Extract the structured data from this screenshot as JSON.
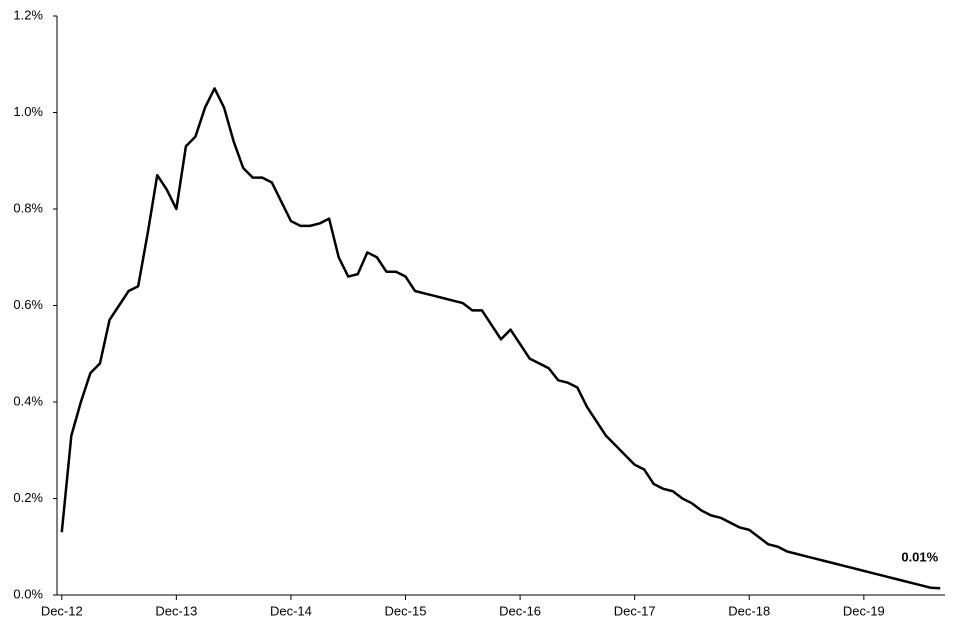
{
  "chart_data": {
    "type": "line",
    "categories": [
      "Dec-12",
      null,
      null,
      null,
      null,
      null,
      null,
      null,
      null,
      null,
      null,
      null,
      "Dec-13",
      null,
      null,
      null,
      null,
      null,
      null,
      null,
      null,
      null,
      null,
      null,
      "Dec-14",
      null,
      null,
      null,
      null,
      null,
      null,
      null,
      null,
      null,
      null,
      null,
      "Dec-15",
      null,
      null,
      null,
      null,
      null,
      null,
      null,
      null,
      null,
      null,
      null,
      "Dec-16",
      null,
      null,
      null,
      null,
      null,
      null,
      null,
      null,
      null,
      null,
      null,
      "Dec-17",
      null,
      null,
      null,
      null,
      null,
      null,
      null,
      null,
      null,
      null,
      null,
      "Dec-18",
      null,
      null,
      null,
      null,
      null,
      null,
      null,
      null,
      null,
      null,
      null,
      "Dec-19",
      null,
      null,
      null,
      null,
      null,
      null,
      null,
      null
    ],
    "series": [
      {
        "color": "#000000",
        "values": [
          0.13,
          0.33,
          0.4,
          0.46,
          0.48,
          0.57,
          0.6,
          0.63,
          0.64,
          0.75,
          0.87,
          0.84,
          0.8,
          0.93,
          0.95,
          1.01,
          1.05,
          1.01,
          0.94,
          0.885,
          0.865,
          0.865,
          0.855,
          0.815,
          0.775,
          0.765,
          0.765,
          0.77,
          0.78,
          0.7,
          0.66,
          0.665,
          0.71,
          0.7,
          0.67,
          0.67,
          0.66,
          0.63,
          0.625,
          0.62,
          0.615,
          0.61,
          0.605,
          0.59,
          0.59,
          0.56,
          0.53,
          0.55,
          0.52,
          0.49,
          0.48,
          0.47,
          0.445,
          0.44,
          0.43,
          0.39,
          0.36,
          0.33,
          0.31,
          0.29,
          0.27,
          0.26,
          0.23,
          0.22,
          0.215,
          0.2,
          0.19,
          0.175,
          0.165,
          0.16,
          0.15,
          0.14,
          0.135,
          0.12,
          0.105,
          0.1,
          0.09,
          0.085,
          0.08,
          0.075,
          0.07,
          0.065,
          0.06,
          0.055,
          0.05,
          0.045,
          0.04,
          0.035,
          0.03,
          0.025,
          0.02,
          0.015,
          0.014
        ]
      }
    ],
    "end_label": "0.01%",
    "ylim": [
      0,
      1.2
    ],
    "yticks": [
      {
        "value": 0,
        "label": "0.0%"
      },
      {
        "value": 0.2,
        "label": "0.2%"
      },
      {
        "value": 0.4,
        "label": "0.4%"
      },
      {
        "value": 0.6,
        "label": "0.6%"
      },
      {
        "value": 0.8,
        "label": "0.8%"
      },
      {
        "value": 1.0,
        "label": "1.0%"
      },
      {
        "value": 1.2,
        "label": "1.2%"
      }
    ],
    "grid": false
  }
}
